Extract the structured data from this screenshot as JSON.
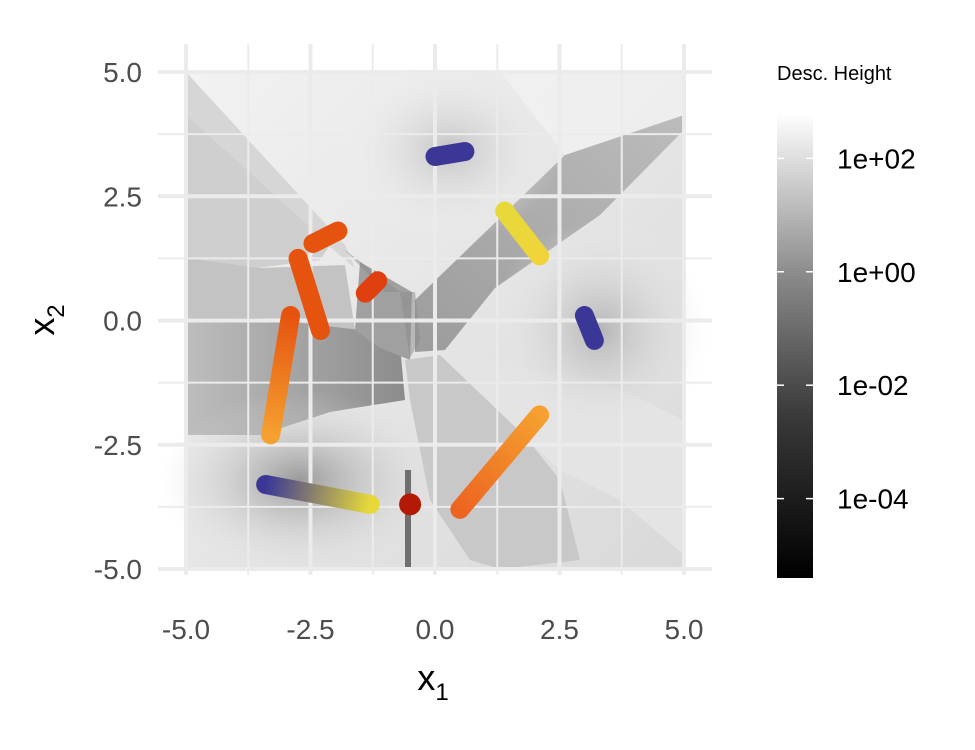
{
  "chart_data": {
    "type": "scatter",
    "title": "",
    "xlabel": {
      "base": "x",
      "sub": "1"
    },
    "ylabel": {
      "base": "x",
      "sub": "2"
    },
    "xlim": [
      -5,
      5
    ],
    "ylim": [
      -5,
      5
    ],
    "xticks": [
      "-5.0",
      "-2.5",
      "0.0",
      "2.5",
      "5.0"
    ],
    "yticks": [
      "5.0",
      "2.5",
      "0.0",
      "-2.5",
      "-5.0"
    ],
    "xtick_values": [
      -5,
      -2.5,
      0,
      2.5,
      5
    ],
    "ytick_values": [
      5,
      2.5,
      0,
      -2.5,
      -5
    ],
    "grid": true,
    "background": "grayscale heatmap of descent height (log scale)",
    "legend": {
      "title": "Desc. Height",
      "position": "right",
      "scale": "log",
      "labels": [
        "1e+02",
        "1e+00",
        "1e-02",
        "1e-04"
      ],
      "label_exponents": [
        2,
        0,
        -2,
        -4
      ],
      "range_exponents": [
        -5.4,
        2.8
      ],
      "colors": [
        "#000000",
        "#ffffff"
      ]
    },
    "series": [
      {
        "points": [
          [
            0.0,
            3.3
          ],
          [
            0.6,
            3.4
          ]
        ],
        "colors": [
          "#3b3796",
          "#3b3796"
        ]
      },
      {
        "points": [
          [
            1.4,
            2.2
          ],
          [
            2.1,
            1.3
          ]
        ],
        "colors": [
          "#e7d93a",
          "#f0d43a"
        ]
      },
      {
        "points": [
          [
            3.0,
            0.1
          ],
          [
            3.2,
            -0.4
          ]
        ],
        "colors": [
          "#3b3796",
          "#3b3796"
        ]
      },
      {
        "points": [
          [
            -2.45,
            1.55
          ],
          [
            -1.95,
            1.8
          ]
        ],
        "colors": [
          "#e6530f",
          "#e6530f"
        ]
      },
      {
        "points": [
          [
            -1.4,
            0.55
          ],
          [
            -1.15,
            0.8
          ]
        ],
        "colors": [
          "#e04010",
          "#e04010"
        ]
      },
      {
        "points": [
          [
            -2.75,
            1.25
          ],
          [
            -2.3,
            -0.2
          ]
        ],
        "colors": [
          "#e6530f",
          "#e6530f"
        ]
      },
      {
        "points": [
          [
            -2.9,
            0.1
          ],
          [
            -3.3,
            -2.3
          ]
        ],
        "colors": [
          "#e6530f",
          "#f5a030"
        ]
      },
      {
        "points": [
          [
            2.1,
            -1.9
          ],
          [
            0.5,
            -3.8
          ]
        ],
        "colors": [
          "#f5a030",
          "#ec6520"
        ]
      },
      {
        "points": [
          [
            -3.4,
            -3.3
          ],
          [
            -1.3,
            -3.7
          ]
        ],
        "colors": [
          "#3b3796",
          "#e7d93a"
        ]
      },
      {
        "points": [
          [
            -0.5,
            -3.7
          ]
        ],
        "colors": [
          "#b31a05"
        ]
      }
    ]
  }
}
